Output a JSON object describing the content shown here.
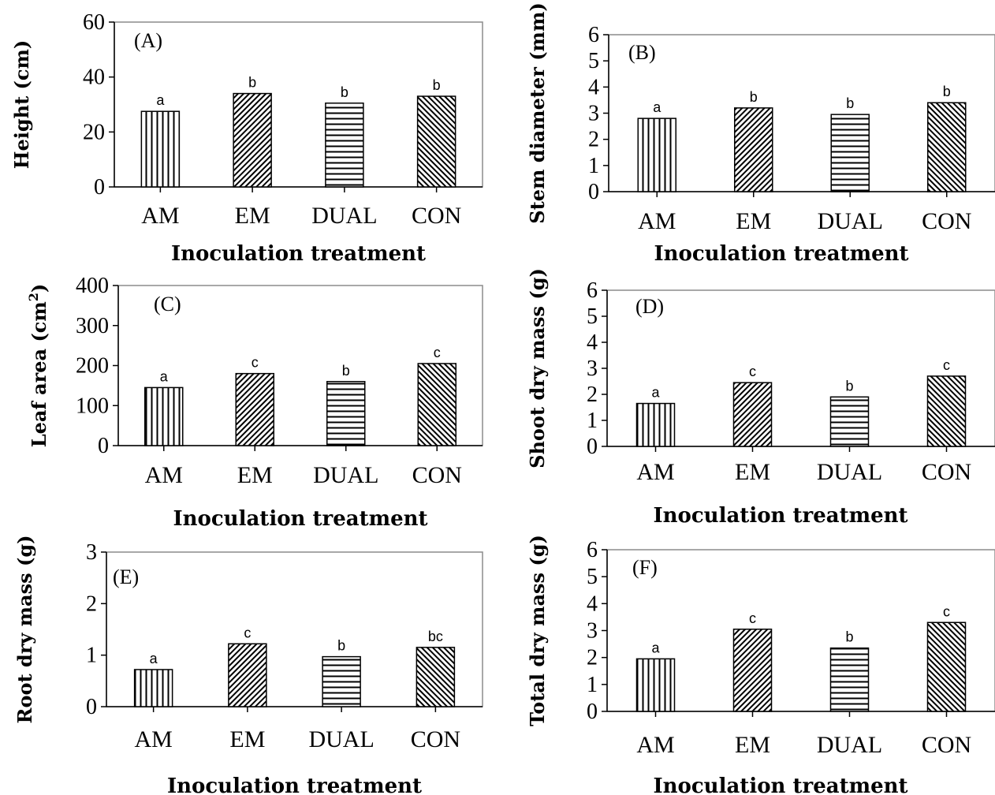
{
  "chart_data": [
    {
      "type": "bar",
      "panel_label": "(A)",
      "categories": [
        "AM",
        "EM",
        "DUAL",
        "CON"
      ],
      "values": [
        27.5,
        34,
        30.5,
        33
      ],
      "significance": [
        "a",
        "b",
        "b",
        "b"
      ],
      "patterns": [
        "vertical",
        "backslash",
        "horizontal",
        "forward"
      ],
      "xlabel": "Inoculation treatment",
      "ylabel": "Height  (cm)",
      "ylim": [
        0,
        60
      ],
      "yticks": [
        "0",
        "20",
        "40",
        "60"
      ]
    },
    {
      "type": "bar",
      "panel_label": "(B)",
      "categories": [
        "AM",
        "EM",
        "DUAL",
        "CON"
      ],
      "values": [
        2.8,
        3.2,
        2.95,
        3.4
      ],
      "significance": [
        "a",
        "b",
        "b",
        "b"
      ],
      "patterns": [
        "vertical",
        "backslash",
        "horizontal",
        "forward"
      ],
      "xlabel": "Inoculation treatment",
      "ylabel": "Stem diameter  (mm)",
      "ylim": [
        0,
        6
      ],
      "yticks": [
        "0",
        "1",
        "2",
        "3",
        "4",
        "5",
        "6"
      ]
    },
    {
      "type": "bar",
      "panel_label": "(C)",
      "categories": [
        "AM",
        "EM",
        "DUAL",
        "CON"
      ],
      "values": [
        145,
        180,
        160,
        205
      ],
      "significance": [
        "a",
        "c",
        "b",
        "c"
      ],
      "patterns": [
        "vertical",
        "backslash",
        "horizontal",
        "forward"
      ],
      "xlabel": "Inoculation treatment",
      "ylabel": "Leaf area  (cm",
      "ylabel_sup": "2",
      "ylabel_end": ")",
      "ylim": [
        0,
        400
      ],
      "yticks": [
        "0",
        "100",
        "200",
        "300",
        "400"
      ]
    },
    {
      "type": "bar",
      "panel_label": "(D)",
      "categories": [
        "AM",
        "EM",
        "DUAL",
        "CON"
      ],
      "values": [
        1.65,
        2.45,
        1.9,
        2.7
      ],
      "significance": [
        "a",
        "c",
        "b",
        "c"
      ],
      "patterns": [
        "vertical",
        "backslash",
        "horizontal",
        "forward"
      ],
      "xlabel": "Inoculation treatment",
      "ylabel": "Shoot dry mass  (g)",
      "ylim": [
        0,
        6
      ],
      "yticks": [
        "0",
        "1",
        "2",
        "3",
        "4",
        "5",
        "6"
      ]
    },
    {
      "type": "bar",
      "panel_label": "(E)",
      "categories": [
        "AM",
        "EM",
        "DUAL",
        "CON"
      ],
      "values": [
        0.72,
        1.22,
        0.97,
        1.15
      ],
      "significance": [
        "a",
        "c",
        "b",
        "bc"
      ],
      "patterns": [
        "vertical",
        "backslash",
        "horizontal",
        "forward"
      ],
      "xlabel": "Inoculation treatment",
      "ylabel": "Root dry mass  (g)",
      "ylim": [
        0,
        3
      ],
      "yticks": [
        "0",
        "1",
        "2",
        "3"
      ]
    },
    {
      "type": "bar",
      "panel_label": "(F)",
      "categories": [
        "AM",
        "EM",
        "DUAL",
        "CON"
      ],
      "values": [
        1.95,
        3.05,
        2.35,
        3.3
      ],
      "significance": [
        "a",
        "c",
        "b",
        "c"
      ],
      "patterns": [
        "vertical",
        "backslash",
        "horizontal",
        "forward"
      ],
      "xlabel": "Inoculation treatment",
      "ylabel": "Total dry mass  (g)",
      "ylim": [
        0,
        6
      ],
      "yticks": [
        "0",
        "1",
        "2",
        "3",
        "4",
        "5",
        "6"
      ]
    }
  ]
}
